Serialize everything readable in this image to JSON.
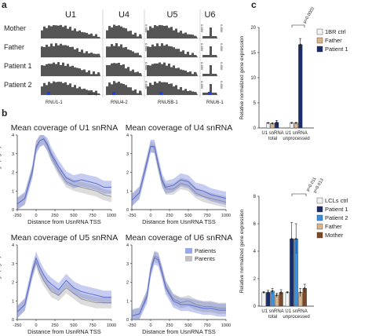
{
  "panels": {
    "a": "a",
    "b": "b",
    "c": "c"
  },
  "tracks": {
    "genes": [
      "U1",
      "U4",
      "U5",
      "U6"
    ],
    "rows": [
      "Mother",
      "Father",
      "Patient 1",
      "Patient 2"
    ],
    "scale_labels": [
      "0-650",
      "0-650",
      "0-650",
      "0-650"
    ],
    "scalebar": "500 bp",
    "gene_labels": [
      "RNU1-1",
      "RNU4-2",
      "RNU5B-1",
      "RNU6-1"
    ],
    "marker_color": "#1f3fd8"
  },
  "chart_data": [
    {
      "type": "area",
      "title": "Mean coverage of U1 snRNA",
      "xlabel": "Distance from UsnRNA TSS",
      "ylabel": "Read coverage (log10)",
      "xlim": [
        -250,
        1000
      ],
      "ylim": [
        0,
        4
      ],
      "xticks": [
        "-250",
        "0",
        "250",
        "500",
        "750",
        "1000"
      ],
      "yticks": [
        "0",
        "1",
        "2",
        "3",
        "4"
      ],
      "series": [
        {
          "name": "Patients",
          "x": [
            -250,
            -150,
            -50,
            0,
            50,
            100,
            150,
            200,
            300,
            400,
            500,
            600,
            700,
            800,
            900,
            1000
          ],
          "values": [
            0.3,
            0.6,
            2.0,
            3.3,
            3.7,
            3.8,
            3.5,
            3.0,
            2.3,
            1.7,
            1.5,
            1.6,
            1.5,
            1.4,
            1.2,
            1.2
          ]
        },
        {
          "name": "Parents",
          "x": [
            -250,
            -150,
            -50,
            0,
            50,
            100,
            150,
            200,
            300,
            400,
            500,
            600,
            700,
            800,
            900,
            1000
          ],
          "values": [
            0.3,
            0.6,
            2.1,
            3.4,
            3.7,
            3.8,
            3.4,
            2.9,
            2.1,
            1.5,
            1.3,
            1.2,
            1.1,
            1.0,
            0.8,
            0.7
          ]
        }
      ]
    },
    {
      "type": "area",
      "title": "Mean coverage of U4 snRNA",
      "xlabel": "Distance from UsnRNA TSS",
      "ylabel": "",
      "xlim": [
        -250,
        1000
      ],
      "ylim": [
        0,
        4
      ],
      "xticks": [
        "-250",
        "0",
        "250",
        "500",
        "750",
        "1000"
      ],
      "yticks": [
        "0",
        "1",
        "2",
        "3",
        "4"
      ],
      "series": [
        {
          "name": "Patients",
          "x": [
            -250,
            -150,
            -50,
            0,
            50,
            100,
            150,
            200,
            300,
            400,
            500,
            600,
            700,
            800,
            900,
            1000
          ],
          "values": [
            0.5,
            0.9,
            2.5,
            3.4,
            3.4,
            2.5,
            1.6,
            1.2,
            1.3,
            1.6,
            1.5,
            1.1,
            1.0,
            0.8,
            0.7,
            0.6
          ]
        },
        {
          "name": "Parents",
          "x": [
            -250,
            -150,
            -50,
            0,
            50,
            100,
            150,
            200,
            300,
            400,
            500,
            600,
            700,
            800,
            900,
            1000
          ],
          "values": [
            0.5,
            0.9,
            2.6,
            3.4,
            3.3,
            2.3,
            1.5,
            1.1,
            1.1,
            1.4,
            1.3,
            0.9,
            0.7,
            0.6,
            0.5,
            0.4
          ]
        }
      ]
    },
    {
      "type": "area",
      "title": "Mean coverage of U5 snRNA",
      "xlabel": "Distance from UsnRNA TSS",
      "ylabel": "Read coverage (log10)",
      "xlim": [
        -250,
        1000
      ],
      "ylim": [
        0,
        4
      ],
      "xticks": [
        "-250",
        "0",
        "250",
        "500",
        "750",
        "1000"
      ],
      "yticks": [
        "0",
        "1",
        "2",
        "3",
        "4"
      ],
      "series": [
        {
          "name": "Patients",
          "x": [
            -250,
            -150,
            -50,
            0,
            50,
            100,
            150,
            200,
            300,
            400,
            500,
            600,
            700,
            800,
            900,
            1000
          ],
          "values": [
            0.4,
            0.8,
            2.6,
            3.3,
            2.8,
            2.4,
            2.1,
            1.9,
            1.6,
            2.1,
            1.7,
            1.5,
            1.4,
            1.3,
            1.2,
            1.2
          ]
        },
        {
          "name": "Parents",
          "x": [
            -250,
            -150,
            -50,
            0,
            50,
            100,
            150,
            200,
            300,
            400,
            500,
            600,
            700,
            800,
            900,
            1000
          ],
          "values": [
            0.4,
            0.8,
            2.5,
            3.1,
            2.5,
            2.1,
            1.8,
            1.5,
            1.3,
            1.7,
            1.4,
            1.1,
            1.0,
            0.9,
            0.9,
            0.9
          ]
        }
      ]
    },
    {
      "type": "area",
      "title": "Mean coverage of U6 snRNA",
      "xlabel": "Distance from UsnRNA TSS",
      "ylabel": "",
      "xlim": [
        -250,
        1000
      ],
      "ylim": [
        0,
        4
      ],
      "xticks": [
        "-250",
        "0",
        "250",
        "500",
        "750",
        "1000"
      ],
      "yticks": [
        "0",
        "1",
        "2",
        "3",
        "4"
      ],
      "legend": "top-right",
      "series": [
        {
          "name": "Patients",
          "x": [
            -250,
            -150,
            -50,
            0,
            50,
            100,
            150,
            200,
            300,
            400,
            500,
            600,
            700,
            800,
            900,
            1000
          ],
          "values": [
            0.2,
            0.3,
            1.2,
            2.6,
            3.3,
            3.2,
            2.5,
            1.7,
            1.0,
            0.8,
            0.8,
            0.7,
            0.6,
            0.6,
            0.5,
            0.5
          ]
        },
        {
          "name": "Parents",
          "x": [
            -250,
            -150,
            -50,
            0,
            50,
            100,
            150,
            200,
            300,
            400,
            500,
            600,
            700,
            800,
            900,
            1000
          ],
          "values": [
            0.2,
            0.3,
            1.3,
            2.7,
            3.4,
            3.3,
            2.6,
            1.8,
            1.1,
            0.9,
            1.0,
            0.8,
            0.7,
            0.7,
            0.6,
            0.6
          ]
        }
      ]
    },
    {
      "type": "bar",
      "ylabel": "Relative normalized gene expression",
      "ylim": [
        0,
        20
      ],
      "yticks": [
        "0",
        "5",
        "10",
        "15",
        "20"
      ],
      "categories": [
        "U1 snRNA\ntotal",
        "U1 snRNA\nunprocessed"
      ],
      "legend": "top-right",
      "series": [
        {
          "name": "1BR ctrl",
          "color": "#f2f2f2",
          "values": [
            1.0,
            1.0
          ],
          "err": [
            0.05,
            0.1
          ]
        },
        {
          "name": "Father",
          "color": "#d9b38c",
          "values": [
            0.9,
            1.0
          ],
          "err": [
            0.1,
            0.1
          ]
        },
        {
          "name": "Patient 1",
          "color": "#1a2d6e",
          "values": [
            1.1,
            16.6
          ],
          "err": [
            0.4,
            1.2
          ]
        }
      ],
      "annotation": "p=0.0002"
    },
    {
      "type": "bar",
      "ylabel": "Relative normalized gene expression",
      "ylim": [
        0,
        8
      ],
      "yticks": [
        "0",
        "2",
        "4",
        "6",
        "8"
      ],
      "categories": [
        "U1 snRNA\ntotal",
        "U1 snRNA\nunprocessed"
      ],
      "legend": "top-right",
      "series": [
        {
          "name": "LCLs ctrl",
          "color": "#f2f2f2",
          "values": [
            1.0,
            1.0
          ],
          "err": [
            0.05,
            0.05
          ]
        },
        {
          "name": "Patient 1",
          "color": "#1a2d6e",
          "values": [
            1.0,
            4.9
          ],
          "err": [
            0.15,
            1.2
          ]
        },
        {
          "name": "Patient 2",
          "color": "#3d8fdc",
          "values": [
            1.1,
            4.9
          ],
          "err": [
            0.2,
            1.1
          ]
        },
        {
          "name": "Father",
          "color": "#d9b38c",
          "values": [
            0.8,
            1.0
          ],
          "err": [
            0.15,
            0.3
          ]
        },
        {
          "name": "Mother",
          "color": "#7a4a28",
          "values": [
            1.0,
            1.3
          ],
          "err": [
            0.2,
            0.3
          ]
        }
      ],
      "annotations": [
        "p=0.011",
        "p=0.013"
      ]
    }
  ],
  "colors": {
    "patients": "#5b6fd6",
    "parents": "#9a9a9a",
    "track_fill": "#555555"
  }
}
